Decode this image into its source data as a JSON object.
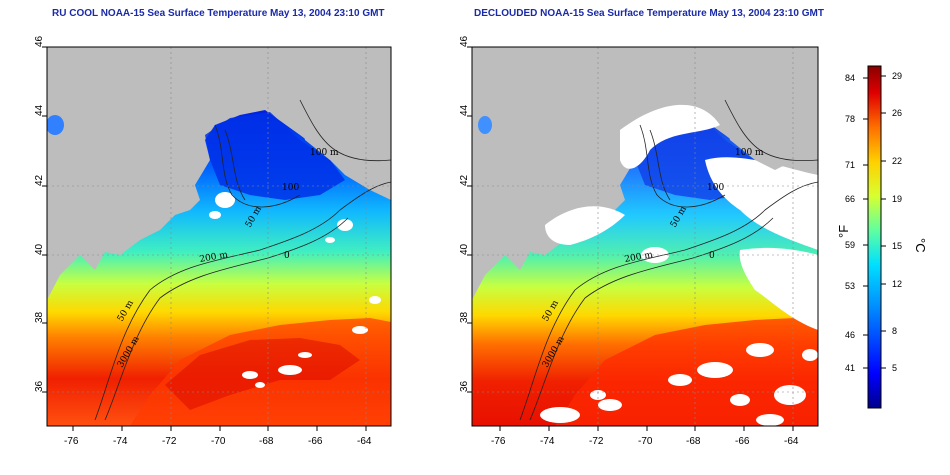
{
  "panels": [
    {
      "title": "RU COOL NOAA-15 Sea Surface Temperature May 13, 2004 23:10 GMT",
      "clouds": "masked"
    },
    {
      "title": "DECLOUDED NOAA-15 Sea Surface Temperature May 13, 2004 23:10 GMT",
      "clouds": "removed"
    }
  ],
  "map": {
    "lon_range": [
      -77,
      -63
    ],
    "lat_range": [
      35,
      46
    ],
    "lon_ticks": [
      "-76",
      "-74",
      "-72",
      "-70",
      "-68",
      "-66",
      "-64"
    ],
    "lat_ticks": [
      "36",
      "38",
      "40",
      "42",
      "44",
      "46"
    ],
    "contour_labels": [
      "100 m",
      "100",
      "50 m",
      "200 m",
      "50 m",
      "3000 m",
      "0"
    ]
  },
  "colorbar": {
    "fahrenheit_unit": "°F",
    "celsius_unit": "°C",
    "fahrenheit_ticks": [
      "84",
      "78",
      "71",
      "66",
      "59",
      "53",
      "46",
      "41"
    ],
    "celsius_ticks": [
      "29",
      "26",
      "22",
      "19",
      "15",
      "12",
      "8",
      "5"
    ],
    "celsius_range": [
      2,
      30
    ],
    "colors": [
      "#00008c",
      "#0000ff",
      "#0090ff",
      "#00e0ff",
      "#60ffa0",
      "#d8ff30",
      "#ffd000",
      "#ff7000",
      "#e00000",
      "#8a0000"
    ]
  },
  "legend_colors": {
    "land": "#c0c0c0",
    "cloud": "#ffffff"
  }
}
